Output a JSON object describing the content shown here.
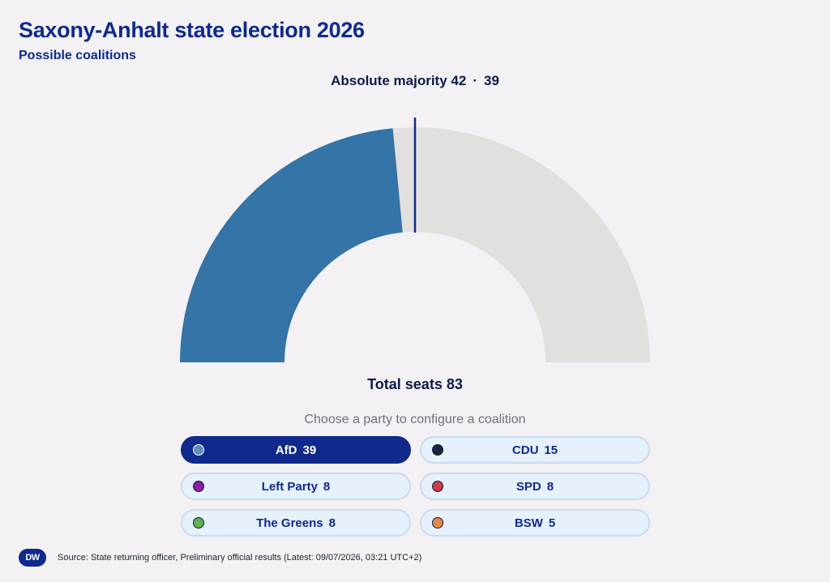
{
  "header": {
    "title": "Saxony-Anhalt state election 2026",
    "subtitle": "Possible coalitions"
  },
  "majority": {
    "label": "Absolute majority",
    "value": "42",
    "separator": "·",
    "current": "39"
  },
  "total": {
    "label": "Total seats",
    "value": "83"
  },
  "prompt": "Choose a party to configure a coalition",
  "chart_data": {
    "type": "semicircle-gauge",
    "total_seats": 83,
    "majority_threshold": 42,
    "selected_seats": 39,
    "fill_color": "#3474a6",
    "track_color": "#e2e0df",
    "marker_color": "#0f2a8c"
  },
  "parties": [
    {
      "name": "AfD",
      "seats": "39",
      "color": "#5f8fb8",
      "selected": true
    },
    {
      "name": "CDU",
      "seats": "15",
      "color": "#1b2436",
      "selected": false
    },
    {
      "name": "Left Party",
      "seats": "8",
      "color": "#8a1fa3",
      "selected": false
    },
    {
      "name": "SPD",
      "seats": "8",
      "color": "#d03a47",
      "selected": false
    },
    {
      "name": "The Greens",
      "seats": "8",
      "color": "#5fb24e",
      "selected": false
    },
    {
      "name": "BSW",
      "seats": "5",
      "color": "#e8874a",
      "selected": false
    }
  ],
  "footer": {
    "logo_text": "DW",
    "source": "Source: State returning officer, Preliminary official results (Latest: 09/07/2026, 03:21 UTC+2)"
  }
}
